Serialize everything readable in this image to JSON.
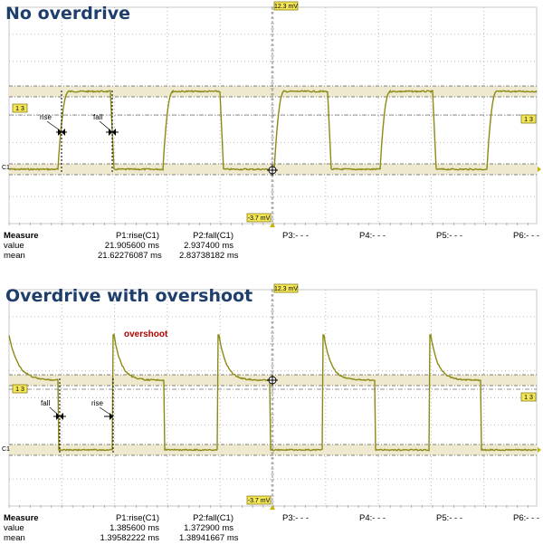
{
  "colors": {
    "trace": "#8c8a14",
    "band": "#efe9cf",
    "marker_fill": "#f4e75a",
    "title": "#1e3e6b",
    "overshoot": "#b00000"
  },
  "panels": [
    {
      "id": "top",
      "title": "No overdrive",
      "tags": {
        "top": "12.3 mV",
        "bottom": "-3.7 mV",
        "left_level": "1 3",
        "right_level": "1 3",
        "channel": "C1"
      },
      "annotations": [
        {
          "label": "rise",
          "kind": "rise"
        },
        {
          "label": "fall",
          "kind": "fall"
        }
      ],
      "overshoot_label": "",
      "measure": {
        "header": [
          "Measure",
          "P1:rise(C1)",
          "P2:fall(C1)",
          "P3:- - -",
          "P4:- - -",
          "P5:- - -",
          "P6:- - -"
        ],
        "value": [
          "value",
          "21.905600 ms",
          "2.937400 ms"
        ],
        "mean": [
          "mean",
          "21.62276087 ms",
          "2.83738182 ms"
        ]
      }
    },
    {
      "id": "bottom",
      "title": "Overdrive with overshoot",
      "tags": {
        "top": "12.3 mV",
        "bottom": "-3.7 mV",
        "left_level": "1 3",
        "right_level": "1 3",
        "channel": "C1"
      },
      "annotations": [
        {
          "label": "fall",
          "kind": "fall"
        },
        {
          "label": "rise",
          "kind": "rise"
        }
      ],
      "overshoot_label": "overshoot",
      "measure": {
        "header": [
          "Measure",
          "P1:rise(C1)",
          "P2:fall(C1)",
          "P3:- - -",
          "P4:- - -",
          "P5:- - -",
          "P6:- - -"
        ],
        "value": [
          "value",
          "1.385600 ms",
          "1.372900 ms"
        ],
        "mean": [
          "mean",
          "1.39582222 ms",
          "1.38941667 ms"
        ]
      }
    }
  ]
}
